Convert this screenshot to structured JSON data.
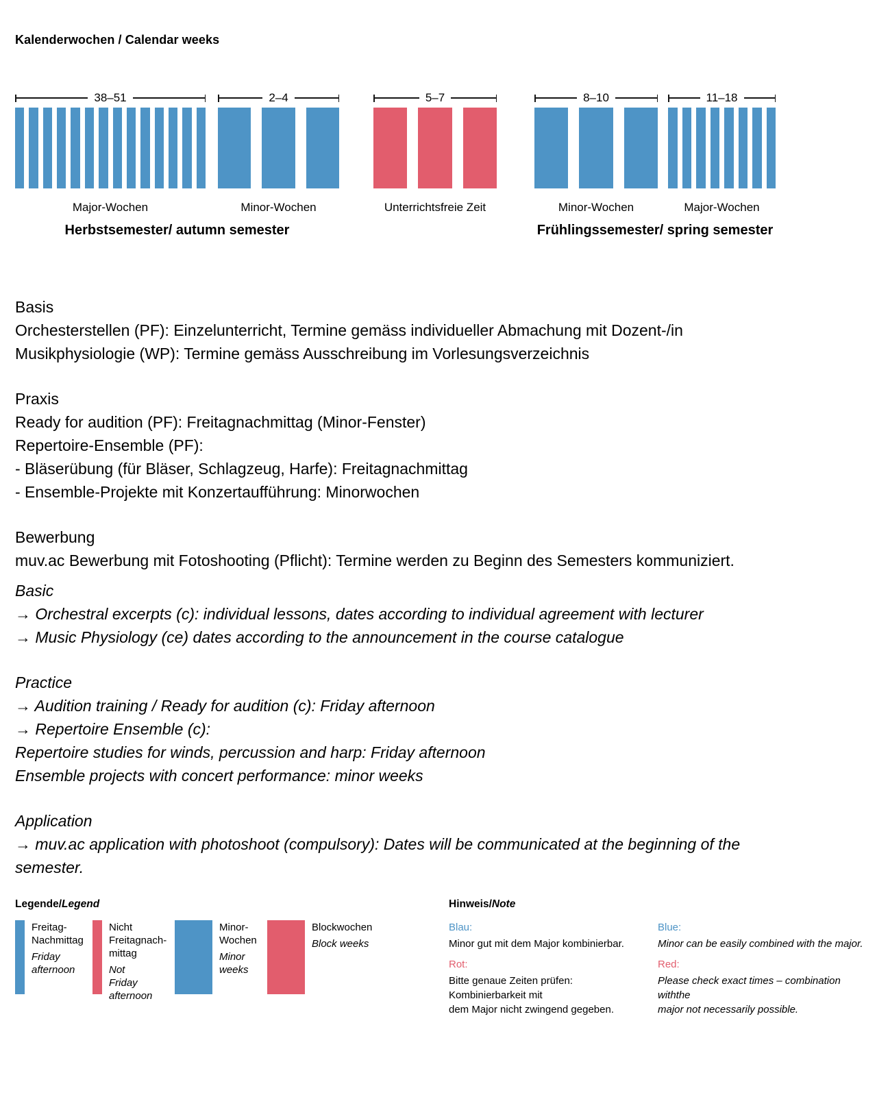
{
  "title": "Kalenderwochen / Calendar weeks",
  "colors": {
    "blue": "#4E94C6",
    "red": "#E25D6D"
  },
  "chart_data": {
    "type": "bar",
    "title": "Kalenderwochen / Calendar weeks",
    "groups": [
      {
        "range": "38–51",
        "weeks": 14,
        "style": "thin",
        "color": "blue",
        "label": "Major-Wochen"
      },
      {
        "range": "2–4",
        "weeks": 3,
        "style": "wide",
        "color": "blue",
        "label": "Minor-Wochen"
      },
      {
        "range": "5–7",
        "weeks": 3,
        "style": "wide",
        "color": "red",
        "label": "Unterrichtsfreie Zeit"
      },
      {
        "range": "8–10",
        "weeks": 3,
        "style": "wide",
        "color": "blue",
        "label": "Minor-Wochen"
      },
      {
        "range": "11–18",
        "weeks": 8,
        "style": "thin",
        "color": "blue",
        "label": "Major-Wochen"
      }
    ],
    "semester_labels": [
      "Herbstsemester/ autumn semester",
      "Frühlingssemester/ spring semester"
    ]
  },
  "body": {
    "sections": [
      {
        "style": "normal",
        "lines": [
          "Basis",
          "Orchesterstellen (PF): Einzelunterricht, Termine gemäss individueller Abmachung mit Dozent-/in",
          "Musikphysiologie (WP): Termine gemäss Ausschreibung im Vorlesungsverzeichnis"
        ]
      },
      {
        "style": "normal",
        "lines": [
          "Praxis",
          "Ready for audition (PF): Freitagnachmittag (Minor-Fenster)",
          "Repertoire-Ensemble (PF):",
          "- Bläserübung (für Bläser, Schlagzeug, Harfe): Freitagnachmittag",
          "- Ensemble-Projekte mit Konzertaufführung: Minorwochen"
        ]
      },
      {
        "style": "normal",
        "lines": [
          "Bewerbung",
          "muv.ac Bewerbung mit Fotoshooting (Pflicht): Termine werden zu Beginn des Semesters kommuniziert."
        ]
      },
      {
        "style": "italic",
        "lines": [
          "Basic",
          "→ Orchestral excerpts (c): individual lessons, dates according to individual agreement with lecturer",
          "→ Music Physiology (ce) dates according to the announcement in the course catalogue"
        ]
      },
      {
        "style": "italic",
        "lines": [
          "Practice",
          "→ Audition training / Ready for audition (c): Friday afternoon",
          "→ Repertoire Ensemble (c):",
          "Repertoire studies for winds, percussion and harp: Friday afternoon",
          "Ensemble projects with concert performance: minor weeks"
        ]
      },
      {
        "style": "italic",
        "lines": [
          "Application",
          "→ muv.ac application with photoshoot (compulsory): Dates will be communicated at the beginning of the",
          "semester."
        ]
      }
    ]
  },
  "legend": {
    "title_de": "Legende/",
    "title_en": "Legend",
    "items": [
      {
        "swatch": "thin",
        "color": "blue",
        "de_lines": [
          "Freitag-",
          "Nachmittag"
        ],
        "en_lines": [
          "Friday",
          "afternoon"
        ]
      },
      {
        "swatch": "thin",
        "color": "red",
        "de_lines": [
          "Nicht",
          "Freitagnach-",
          "mittag"
        ],
        "en_lines": [
          "Not",
          "Friday",
          "afternoon"
        ]
      },
      {
        "swatch": "wide",
        "color": "blue",
        "de_lines": [
          "Minor-",
          "Wochen"
        ],
        "en_lines": [
          "Minor",
          "weeks"
        ]
      },
      {
        "swatch": "wide",
        "color": "red",
        "de_lines": [
          "Blockwochen"
        ],
        "en_lines": [
          "Block weeks"
        ]
      }
    ]
  },
  "note": {
    "title_de": "Hinweis/",
    "title_en": "Note",
    "columns": [
      {
        "lang": "de",
        "italic": false,
        "entries": [
          {
            "label": "Blau:",
            "color": "blue",
            "lines": [
              "Minor gut mit dem Major kombinierbar."
            ]
          },
          {
            "label": "Rot:",
            "color": "red",
            "lines": [
              "Bitte genaue Zeiten prüfen: Kombinierbarkeit mit",
              "dem Major nicht zwingend gegeben."
            ]
          }
        ]
      },
      {
        "lang": "en",
        "italic": true,
        "entries": [
          {
            "label": "Blue:",
            "color": "blue",
            "lines": [
              "Minor can be easily combined with the major."
            ]
          },
          {
            "label": "Red:",
            "color": "red",
            "lines": [
              "Please check exact times – combination withthe",
              "major not necessarily possible."
            ]
          }
        ]
      }
    ]
  }
}
